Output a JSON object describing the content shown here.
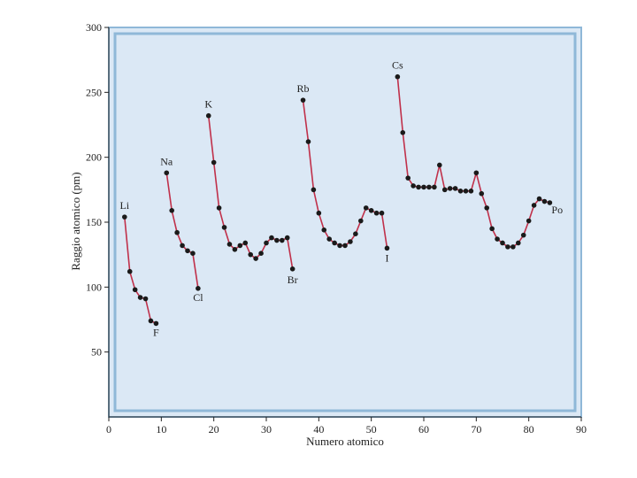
{
  "chart_data": {
    "type": "line",
    "xlabel": "Numero atomico",
    "ylabel": "Raggio atomico (pm)",
    "xlim": [
      0,
      90
    ],
    "ylim": [
      0,
      300
    ],
    "x_ticks": [
      0,
      10,
      20,
      30,
      40,
      50,
      60,
      70,
      80,
      90
    ],
    "y_ticks": [
      50,
      100,
      150,
      200,
      250,
      300
    ],
    "grid": false,
    "colors": {
      "plot_bg": "#dbe8f5",
      "frame": "#8fb8d8",
      "line": "#c0304a",
      "marker": "#1a1a1a"
    },
    "series": [
      {
        "x": [
          3,
          4,
          5,
          6,
          7,
          8,
          9
        ],
        "y": [
          154,
          112,
          98,
          92,
          91,
          74,
          72
        ]
      },
      {
        "x": [
          11,
          12,
          13,
          14,
          15,
          16,
          17
        ],
        "y": [
          188,
          159,
          142,
          132,
          128,
          126,
          99
        ]
      },
      {
        "x": [
          19,
          20,
          21,
          22,
          23,
          24,
          25,
          26,
          27,
          28,
          29,
          30,
          31,
          32,
          33,
          34,
          35
        ],
        "y": [
          232,
          196,
          161,
          146,
          133,
          129,
          132,
          134,
          125,
          122,
          126,
          134,
          138,
          136,
          136,
          138,
          114
        ]
      },
      {
        "x": [
          37,
          38,
          39,
          40,
          41,
          42,
          43,
          44,
          45,
          46,
          47,
          48,
          49,
          50,
          51,
          52,
          53
        ],
        "y": [
          244,
          212,
          175,
          157,
          144,
          137,
          134,
          132,
          132,
          135,
          141,
          151,
          161,
          159,
          157,
          157,
          130
        ]
      },
      {
        "x": [
          55,
          56,
          57,
          58,
          59,
          60,
          61,
          62,
          63,
          64,
          65,
          66,
          67,
          68,
          69,
          70,
          71,
          72,
          73,
          74,
          75,
          76,
          77,
          78,
          79,
          80,
          81,
          82,
          83,
          84
        ],
        "y": [
          262,
          219,
          184,
          178,
          177,
          177,
          177,
          177,
          194,
          175,
          176,
          176,
          174,
          174,
          174,
          188,
          172,
          161,
          145,
          137,
          134,
          131,
          131,
          134,
          140,
          151,
          163,
          168,
          166,
          165
        ]
      }
    ],
    "annotations": [
      {
        "text": "Li",
        "x": 3,
        "y": 154
      },
      {
        "text": "F",
        "x": 9,
        "y": 72
      },
      {
        "text": "Na",
        "x": 11,
        "y": 188
      },
      {
        "text": "Cl",
        "x": 17,
        "y": 99
      },
      {
        "text": "K",
        "x": 19,
        "y": 232
      },
      {
        "text": "Br",
        "x": 35,
        "y": 114
      },
      {
        "text": "Rb",
        "x": 37,
        "y": 244
      },
      {
        "text": "I",
        "x": 53,
        "y": 130
      },
      {
        "text": "Cs",
        "x": 55,
        "y": 262
      },
      {
        "text": "Po",
        "x": 84,
        "y": 165
      }
    ]
  }
}
